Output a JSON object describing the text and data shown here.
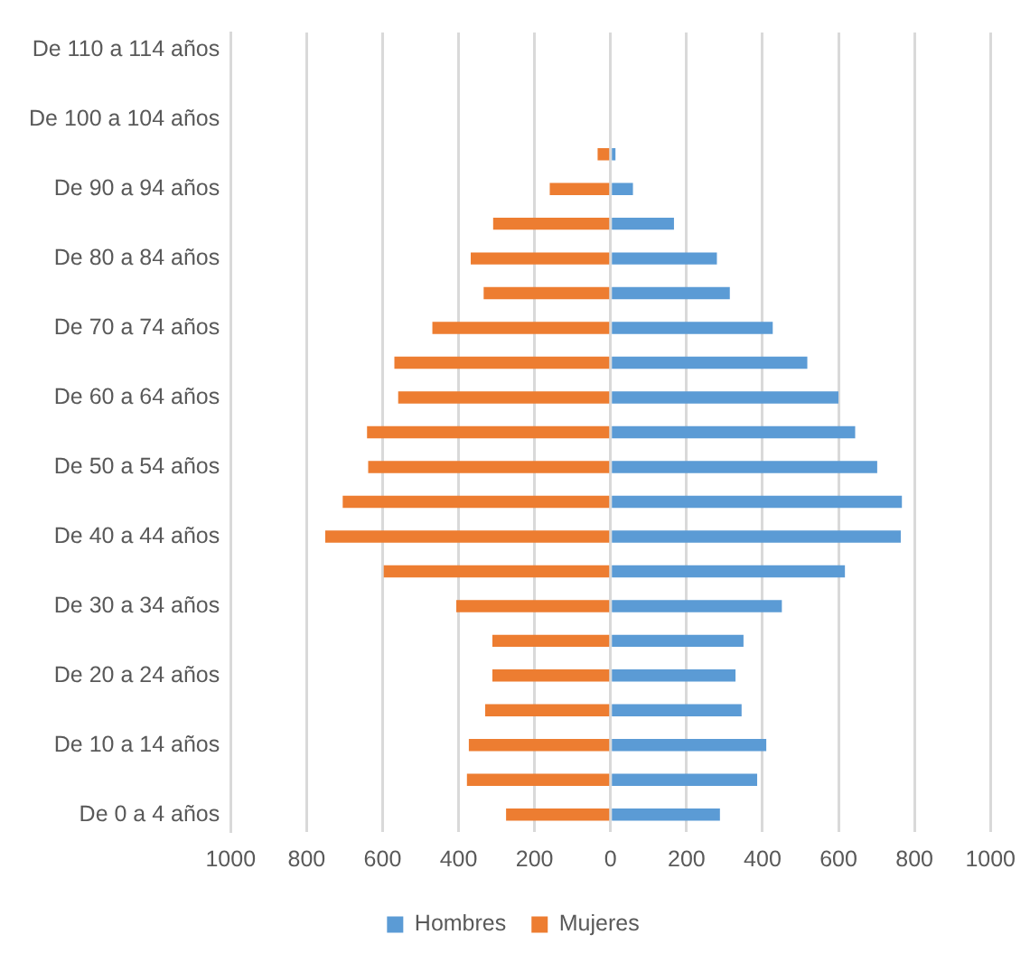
{
  "chart_data": {
    "type": "bar",
    "orientation": "horizontal",
    "stacked": true,
    "grid": "x",
    "legend": "bottom",
    "categories": [
      "De 110 a 114 años",
      null,
      "De 100 a 104 años",
      null,
      "De 90 a 94 años",
      null,
      "De 80 a 84 años",
      null,
      "De 70 a 74 años",
      null,
      "De 60 a 64 años",
      null,
      "De 50 a 54 años",
      null,
      "De 40 a 44 años",
      null,
      "De 30 a 34 años",
      null,
      "De 20 a 24 años",
      null,
      "De 10 a 14 años",
      null,
      "De 0 a 4 años"
    ],
    "xlim": [
      -1000,
      1000
    ],
    "xticks": [
      {
        "value": -1000,
        "label": "1000"
      },
      {
        "value": -800,
        "label": "800"
      },
      {
        "value": -600,
        "label": "600"
      },
      {
        "value": -400,
        "label": "400"
      },
      {
        "value": -200,
        "label": "200"
      },
      0,
      200,
      400,
      600,
      800,
      1000
    ],
    "series": [
      {
        "name": "Hombres",
        "color": "#5b9bd5",
        "values": [
          null,
          null,
          null,
          13,
          59,
          167,
          280,
          314,
          427,
          518,
          600,
          644,
          702,
          767,
          764,
          617,
          451,
          350,
          329,
          345,
          410,
          386,
          288
        ]
      },
      {
        "name": "Mujeres",
        "color": "#ed7d31",
        "values": [
          null,
          null,
          null,
          -34,
          -160,
          -309,
          -368,
          -334,
          -469,
          -569,
          -559,
          -641,
          -638,
          -705,
          -751,
          -597,
          -406,
          -311,
          -311,
          -330,
          -373,
          -378,
          -275
        ]
      }
    ]
  }
}
